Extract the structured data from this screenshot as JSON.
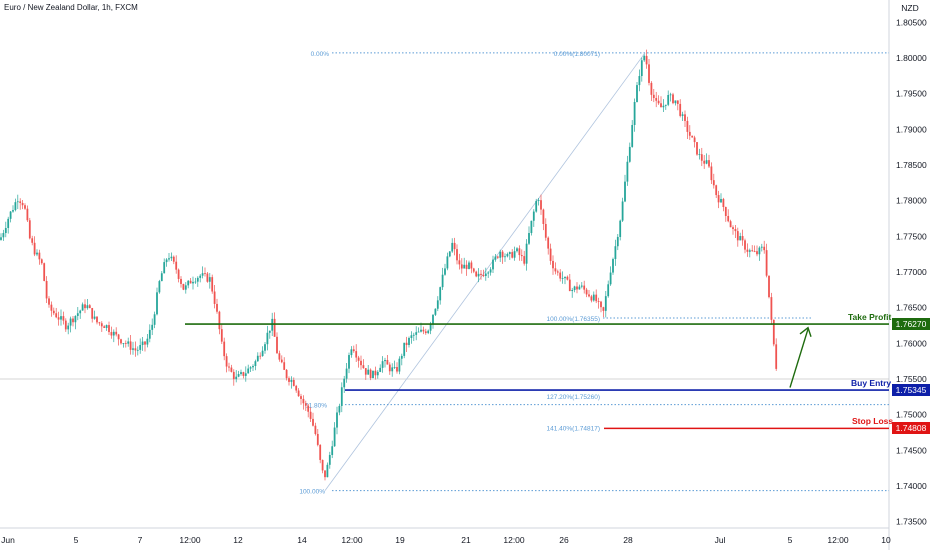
{
  "title": "Euro / New Zealand Dollar, 1h, FXCM",
  "currency": "NZD",
  "colors": {
    "up": "#26a69a",
    "down": "#ef5350",
    "take_profit": "#1e6b0e",
    "buy_entry": "#0d1fa8",
    "stop_loss": "#e01414",
    "fib": "#5b9bd5",
    "arrow": "#1e6b0e"
  },
  "chart_data": {
    "type": "candlestick",
    "symbol": "EURNZD",
    "timeframe": "1h",
    "x_labels": [
      "Jun",
      "5",
      "7",
      "12:00",
      "12",
      "14",
      "12:00",
      "19",
      "21",
      "12:00",
      "26",
      "28",
      "Jul",
      "5",
      "12:00",
      "10"
    ],
    "y_ticks": [
      "1.80500",
      "1.80000",
      "1.79500",
      "1.79000",
      "1.78500",
      "1.78000",
      "1.77500",
      "1.77000",
      "1.76500",
      "1.76000",
      "1.75500",
      "1.75000",
      "1.74500",
      "1.74000",
      "1.73500"
    ],
    "ylim": [
      1.732,
      1.808
    ],
    "price_path": [
      [
        0,
        1.7745
      ],
      [
        8,
        1.7775
      ],
      [
        18,
        1.7805
      ],
      [
        24,
        1.7795
      ],
      [
        30,
        1.7745
      ],
      [
        36,
        1.7725
      ],
      [
        42,
        1.771
      ],
      [
        48,
        1.765
      ],
      [
        56,
        1.764
      ],
      [
        66,
        1.7625
      ],
      [
        76,
        1.764
      ],
      [
        86,
        1.7655
      ],
      [
        96,
        1.763
      ],
      [
        106,
        1.7625
      ],
      [
        116,
        1.761
      ],
      [
        126,
        1.76
      ],
      [
        136,
        1.759
      ],
      [
        146,
        1.76
      ],
      [
        152,
        1.7625
      ],
      [
        160,
        1.769
      ],
      [
        168,
        1.7725
      ],
      [
        176,
        1.7705
      ],
      [
        184,
        1.7675
      ],
      [
        192,
        1.769
      ],
      [
        200,
        1.7695
      ],
      [
        210,
        1.769
      ],
      [
        216,
        1.765
      ],
      [
        222,
        1.7595
      ],
      [
        228,
        1.7565
      ],
      [
        236,
        1.755
      ],
      [
        246,
        1.756
      ],
      [
        256,
        1.7575
      ],
      [
        264,
        1.76
      ],
      [
        272,
        1.763
      ],
      [
        278,
        1.758
      ],
      [
        286,
        1.7555
      ],
      [
        294,
        1.7545
      ],
      [
        302,
        1.752
      ],
      [
        310,
        1.75
      ],
      [
        316,
        1.747
      ],
      [
        320,
        1.7435
      ],
      [
        324,
        1.741
      ],
      [
        328,
        1.743
      ],
      [
        334,
        1.7475
      ],
      [
        340,
        1.752
      ],
      [
        346,
        1.7565
      ],
      [
        352,
        1.76
      ],
      [
        358,
        1.758
      ],
      [
        366,
        1.756
      ],
      [
        374,
        1.7555
      ],
      [
        382,
        1.7575
      ],
      [
        390,
        1.7565
      ],
      [
        396,
        1.756
      ],
      [
        404,
        1.7595
      ],
      [
        412,
        1.761
      ],
      [
        420,
        1.7615
      ],
      [
        428,
        1.762
      ],
      [
        436,
        1.7655
      ],
      [
        444,
        1.77
      ],
      [
        452,
        1.774
      ],
      [
        460,
        1.7705
      ],
      [
        468,
        1.771
      ],
      [
        476,
        1.769
      ],
      [
        484,
        1.77
      ],
      [
        492,
        1.771
      ],
      [
        500,
        1.773
      ],
      [
        508,
        1.772
      ],
      [
        516,
        1.773
      ],
      [
        524,
        1.7715
      ],
      [
        530,
        1.776
      ],
      [
        538,
        1.781
      ],
      [
        544,
        1.776
      ],
      [
        550,
        1.772
      ],
      [
        556,
        1.77
      ],
      [
        564,
        1.769
      ],
      [
        572,
        1.7675
      ],
      [
        580,
        1.768
      ],
      [
        588,
        1.767
      ],
      [
        596,
        1.766
      ],
      [
        603,
        1.764
      ],
      [
        610,
        1.77
      ],
      [
        616,
        1.774
      ],
      [
        622,
        1.779
      ],
      [
        628,
        1.786
      ],
      [
        634,
        1.793
      ],
      [
        640,
        1.7985
      ],
      [
        645,
        1.8007
      ],
      [
        650,
        1.796
      ],
      [
        656,
        1.7935
      ],
      [
        662,
        1.793
      ],
      [
        668,
        1.7945
      ],
      [
        676,
        1.794
      ],
      [
        684,
        1.791
      ],
      [
        692,
        1.7885
      ],
      [
        700,
        1.786
      ],
      [
        708,
        1.785
      ],
      [
        716,
        1.781
      ],
      [
        724,
        1.779
      ],
      [
        732,
        1.776
      ],
      [
        740,
        1.7745
      ],
      [
        748,
        1.773
      ],
      [
        756,
        1.7725
      ],
      [
        764,
        1.7735
      ],
      [
        768,
        1.768
      ],
      [
        772,
        1.762
      ],
      [
        776,
        1.757
      ],
      [
        778,
        1.755
      ]
    ],
    "levels": {
      "take_profit": {
        "label": "Take Profit",
        "value": 1.7627,
        "price_text": "1.76270"
      },
      "buy_entry": {
        "label": "Buy Entry",
        "value": 1.75345,
        "price_text": "1.75345"
      },
      "stop_loss": {
        "label": "Stop Loss",
        "value": 1.74808,
        "price_text": "1.74808"
      }
    },
    "fib_high": {
      "label": "0.00%",
      "value": 1.80071,
      "label2": "0.00%(1.80071)"
    },
    "fib_low_100": {
      "label": "100.00%",
      "value": 1.73935
    },
    "fib_mid": {
      "label": "100.00%(1.76355)",
      "value": 1.76355
    },
    "fib_127": {
      "label": "127.20%(1.75260)",
      "value": 1.7526
    },
    "fib_141": {
      "label": "141.40%(1.74817)",
      "value": 1.74817
    },
    "fib_left_60": {
      "label": "61.80%",
      "value": 1.7526
    }
  }
}
